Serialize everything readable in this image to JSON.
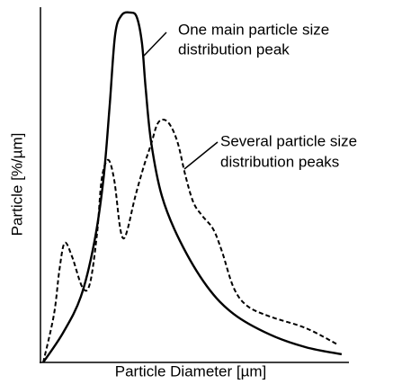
{
  "chart_data": {
    "type": "line",
    "x_label": "Particle Diameter [µm]",
    "y_label": "Particle [%/µm]",
    "xlim": [
      0,
      100
    ],
    "ylim": [
      0,
      100
    ],
    "annotations": [
      {
        "lines": [
          "One main particle size",
          "distribution peak"
        ]
      },
      {
        "lines": [
          "Several particle size",
          "distribution peaks"
        ]
      }
    ],
    "series": [
      {
        "color": "#000000",
        "dash": "solid",
        "x": [
          0.9,
          7.4,
          13.2,
          17.6,
          20.6,
          22.6,
          24.4,
          26.5,
          29.4,
          31.5,
          33.2,
          34.4,
          36.2,
          39.7,
          45.6,
          54.4,
          63.2,
          75,
          86.8,
          98.5
        ],
        "values": [
          0,
          8.4,
          18.6,
          34,
          51.9,
          72.3,
          92.6,
          98.2,
          99,
          97.7,
          90.3,
          77.6,
          62.3,
          47.1,
          34.4,
          21.6,
          13.7,
          7.9,
          4.3,
          2.3
        ]
      },
      {
        "color": "#000000",
        "dash": "dashed",
        "x": [
          0.9,
          4.4,
          6.2,
          7.9,
          10.3,
          13.8,
          16.2,
          18.5,
          20,
          22.1,
          24.1,
          25.9,
          27.1,
          28.5,
          30.9,
          33.8,
          36.2,
          38.2,
          40.3,
          42.6,
          45,
          47.4,
          50,
          52.9,
          56.5,
          59.4,
          63.2,
          67.6,
          75,
          86.8,
          97.1
        ],
        "values": [
          0,
          13.5,
          26.2,
          33.8,
          30,
          21.1,
          22.4,
          36.4,
          51.7,
          57.3,
          51.7,
          38.9,
          35.1,
          37.7,
          46.6,
          55.5,
          61.8,
          67.4,
          68.7,
          66.9,
          61.8,
          52.9,
          45.3,
          41.5,
          37.7,
          31.3,
          21.1,
          16,
          13,
          9.7,
          5.1
        ]
      }
    ]
  }
}
